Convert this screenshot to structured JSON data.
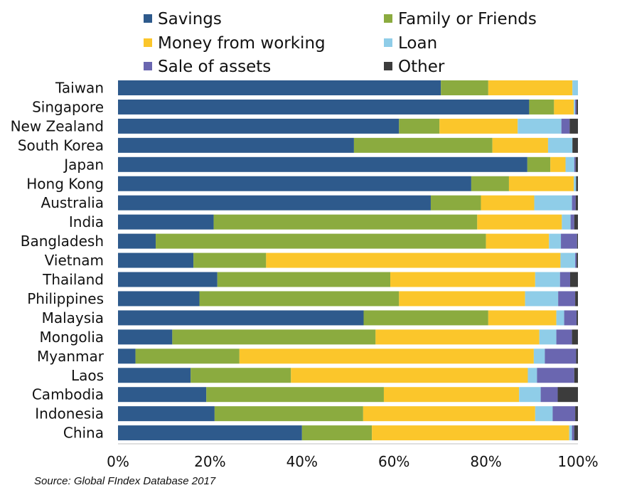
{
  "chart_data": {
    "type": "bar",
    "orientation": "horizontal",
    "stacked": true,
    "percent_stacked": true,
    "title": "",
    "xlabel": "",
    "ylabel": "",
    "xlim": [
      0,
      100
    ],
    "x_ticks": [
      "0%",
      "20%",
      "40%",
      "60%",
      "80%",
      "100%"
    ],
    "grid": false,
    "legend_position": "top",
    "categories": [
      "Taiwan",
      "Singapore",
      "New Zealand",
      "South Korea",
      "Japan",
      "Hong Kong",
      "Australia",
      "India",
      "Bangladesh",
      "Vietnam",
      "Thailand",
      "Philippines",
      "Malaysia",
      "Mongolia",
      "Myanmar",
      "Laos",
      "Cambodia",
      "Indonesia",
      "China"
    ],
    "series": [
      {
        "name": "Savings",
        "color": "#2e5a8c",
        "values": [
          70.2,
          89.4,
          61.1,
          51.3,
          89.0,
          76.8,
          68.0,
          20.8,
          8.2,
          16.4,
          21.6,
          17.7,
          53.4,
          11.8,
          3.8,
          15.8,
          19.2,
          21.0,
          40.0
        ]
      },
      {
        "name": "Family or Friends",
        "color": "#8bab3f",
        "values": [
          10.3,
          5.4,
          8.8,
          30.1,
          5.0,
          8.2,
          10.9,
          57.3,
          71.8,
          15.8,
          37.6,
          43.4,
          27.1,
          44.2,
          22.6,
          21.8,
          38.6,
          32.3,
          15.2
        ]
      },
      {
        "name": "Money from working",
        "color": "#fbc62b",
        "values": [
          18.3,
          4.3,
          17.0,
          12.1,
          3.3,
          14.1,
          11.6,
          18.4,
          13.7,
          64.0,
          31.5,
          27.4,
          14.8,
          35.6,
          64.0,
          51.5,
          29.4,
          37.4,
          42.9
        ]
      },
      {
        "name": "Loan",
        "color": "#8fcde8",
        "values": [
          1.2,
          0.3,
          9.5,
          5.3,
          1.9,
          0.5,
          8.2,
          1.9,
          2.6,
          3.2,
          5.4,
          7.2,
          1.7,
          3.7,
          2.4,
          2.0,
          4.7,
          3.8,
          0.6
        ]
      },
      {
        "name": "Sale of assets",
        "color": "#6a66b0",
        "values": [
          0.0,
          0.3,
          1.8,
          0.0,
          0.3,
          0.0,
          0.8,
          0.8,
          3.5,
          0.3,
          2.2,
          3.7,
          2.7,
          3.4,
          6.8,
          8.1,
          3.7,
          4.9,
          0.5
        ]
      },
      {
        "name": "Other",
        "color": "#3c3c3c",
        "values": [
          0.0,
          0.3,
          1.8,
          1.2,
          0.5,
          0.4,
          0.5,
          0.8,
          0.2,
          0.3,
          1.7,
          0.6,
          0.3,
          1.3,
          0.4,
          0.8,
          4.4,
          0.6,
          0.8
        ]
      }
    ]
  },
  "source_note": "Source: Global FIndex Database 2017"
}
